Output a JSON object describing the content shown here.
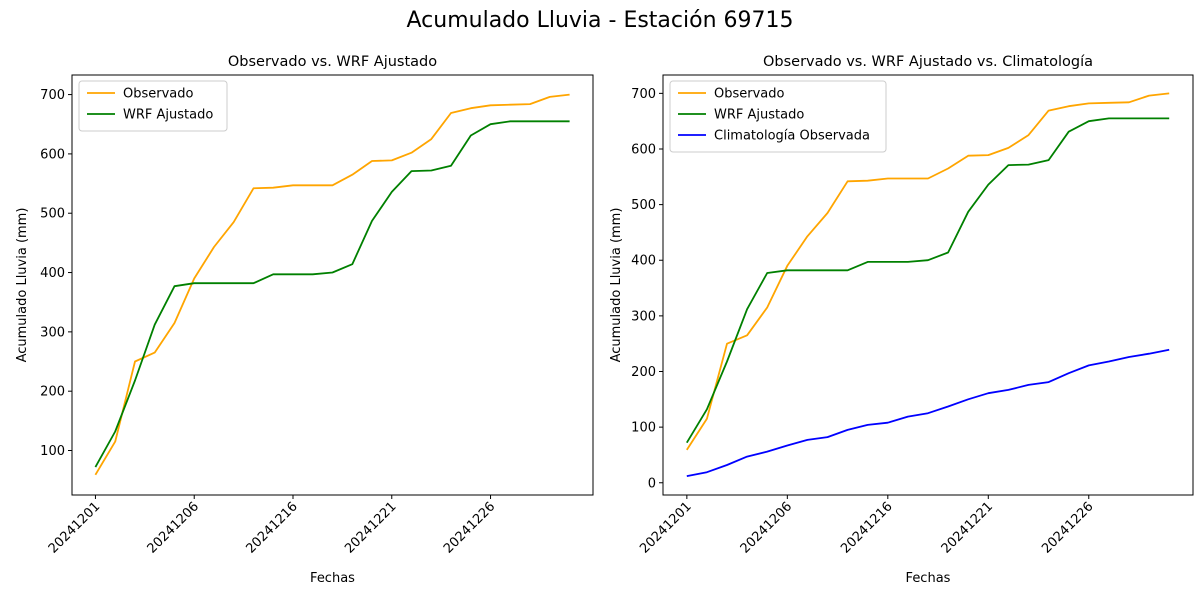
{
  "suptitle": "Acumulado Lluvia - Estación 69715",
  "colors": {
    "observado": "#ffa500",
    "wrf": "#008000",
    "climatologia": "#0000ff"
  },
  "chart_data": [
    {
      "type": "line",
      "title": "Observado vs. WRF Ajustado",
      "xlabel": "Fechas",
      "ylabel": "Acumulado Lluvia (mm)",
      "x_tick_labels": [
        "20241201",
        "20241206",
        "20241216",
        "20241221",
        "20241226"
      ],
      "y_ticks": [
        100,
        200,
        300,
        400,
        500,
        600,
        700
      ],
      "ylim": [
        25,
        733
      ],
      "legend_position": "upper-left",
      "grid": false,
      "series": [
        {
          "name": "Observado",
          "color": "#ffa500",
          "values": [
            59,
            115,
            250,
            265,
            315,
            390,
            443,
            485,
            542,
            543,
            547,
            547,
            547,
            565,
            588,
            589,
            602,
            625,
            669,
            677,
            682,
            683,
            684,
            696,
            700
          ]
        },
        {
          "name": "WRF Ajustado",
          "color": "#008000",
          "values": [
            72,
            132,
            218,
            312,
            377,
            382,
            382,
            382,
            382,
            397,
            397,
            397,
            400,
            414,
            487,
            536,
            571,
            572,
            580,
            631,
            650,
            655,
            655,
            655,
            655
          ]
        }
      ]
    },
    {
      "type": "line",
      "title": "Observado vs. WRF Ajustado vs. Climatología",
      "xlabel": "Fechas",
      "ylabel": "Acumulado Lluvia (mm)",
      "x_tick_labels": [
        "20241201",
        "20241206",
        "20241216",
        "20241221",
        "20241226"
      ],
      "y_ticks": [
        0,
        100,
        200,
        300,
        400,
        500,
        600,
        700
      ],
      "ylim": [
        -22,
        733
      ],
      "legend_position": "upper-left",
      "grid": false,
      "series": [
        {
          "name": "Observado",
          "color": "#ffa500",
          "values": [
            59,
            115,
            250,
            265,
            315,
            390,
            443,
            485,
            542,
            543,
            547,
            547,
            547,
            565,
            588,
            589,
            602,
            625,
            669,
            677,
            682,
            683,
            684,
            696,
            700
          ]
        },
        {
          "name": "WRF Ajustado",
          "color": "#008000",
          "values": [
            72,
            132,
            218,
            312,
            377,
            382,
            382,
            382,
            382,
            397,
            397,
            397,
            400,
            414,
            487,
            536,
            571,
            572,
            580,
            631,
            650,
            655,
            655,
            655,
            655
          ]
        },
        {
          "name": "Climatología Observada",
          "color": "#0000ff",
          "values": [
            12,
            19,
            32,
            47,
            56,
            67,
            77,
            82,
            95,
            104,
            108,
            119,
            125,
            137,
            150,
            161,
            167,
            176,
            181,
            197,
            211,
            218,
            226,
            232,
            239
          ]
        }
      ]
    }
  ]
}
